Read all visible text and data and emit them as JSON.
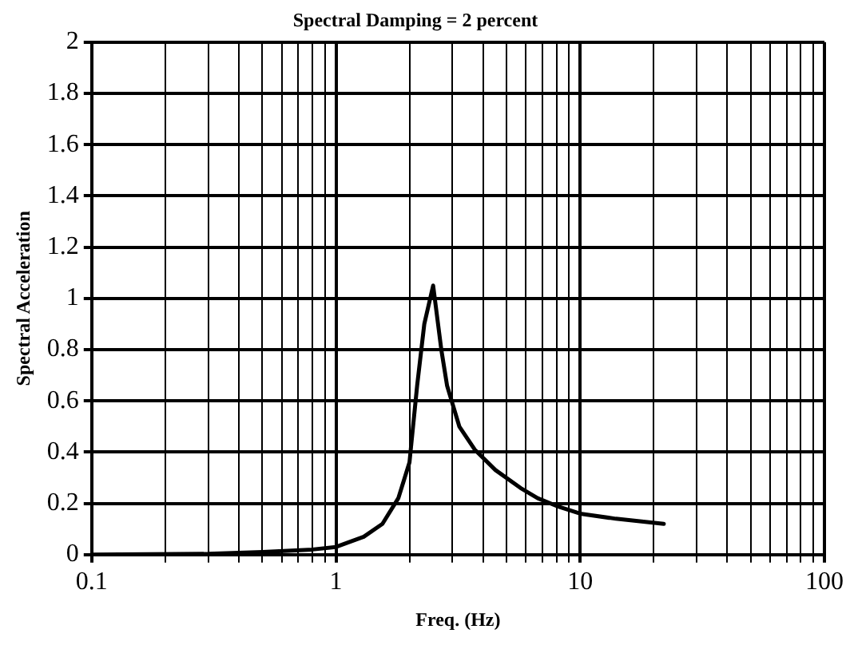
{
  "chart_data": {
    "type": "line",
    "title": "Spectral Damping = 2 percent",
    "xlabel": "Freq. (Hz)",
    "ylabel": "Spectral Acceleration",
    "log": "x",
    "grid": true,
    "marker": "none",
    "line_style": "solid",
    "legend": false,
    "xlim": [
      0.1,
      100
    ],
    "ylim": [
      0,
      2
    ],
    "xticks": [
      0.1,
      {
        "value": 0.2,
        "label": null
      },
      {
        "value": 0.3,
        "label": null
      },
      {
        "value": 0.4,
        "label": null
      },
      {
        "value": 0.5,
        "label": null
      },
      {
        "value": 0.6,
        "label": null
      },
      {
        "value": 0.7,
        "label": null
      },
      {
        "value": 0.8,
        "label": null
      },
      {
        "value": 0.9,
        "label": null
      },
      1,
      {
        "value": 2,
        "label": null
      },
      {
        "value": 3,
        "label": null
      },
      {
        "value": 4,
        "label": null
      },
      {
        "value": 5,
        "label": null
      },
      {
        "value": 6,
        "label": null
      },
      {
        "value": 7,
        "label": null
      },
      {
        "value": 8,
        "label": null
      },
      {
        "value": 9,
        "label": null
      },
      10,
      {
        "value": 20,
        "label": null
      },
      {
        "value": 30,
        "label": null
      },
      {
        "value": 40,
        "label": null
      },
      {
        "value": 50,
        "label": null
      },
      {
        "value": 60,
        "label": null
      },
      {
        "value": 70,
        "label": null
      },
      {
        "value": 80,
        "label": null
      },
      {
        "value": 90,
        "label": null
      },
      100
    ],
    "yticks": [
      0,
      0.2,
      0.4,
      0.6,
      0.8,
      1,
      1.2,
      1.4,
      1.6,
      1.8,
      2
    ],
    "series": [
      {
        "color": "#000000",
        "x": [
          0.1,
          0.3,
          0.5,
          0.8,
          1,
          1.3,
          1.55,
          1.8,
          2,
          2.15,
          2.3,
          2.5,
          2.7,
          2.85,
          3.2,
          3.7,
          4.5,
          5.7,
          6.7,
          8,
          10,
          14,
          22
        ],
        "values": [
          0,
          0.003,
          0.01,
          0.02,
          0.03,
          0.07,
          0.12,
          0.22,
          0.36,
          0.66,
          0.9,
          1.05,
          0.8,
          0.66,
          0.5,
          0.41,
          0.33,
          0.26,
          0.22,
          0.19,
          0.16,
          0.14,
          0.12
        ]
      }
    ]
  }
}
